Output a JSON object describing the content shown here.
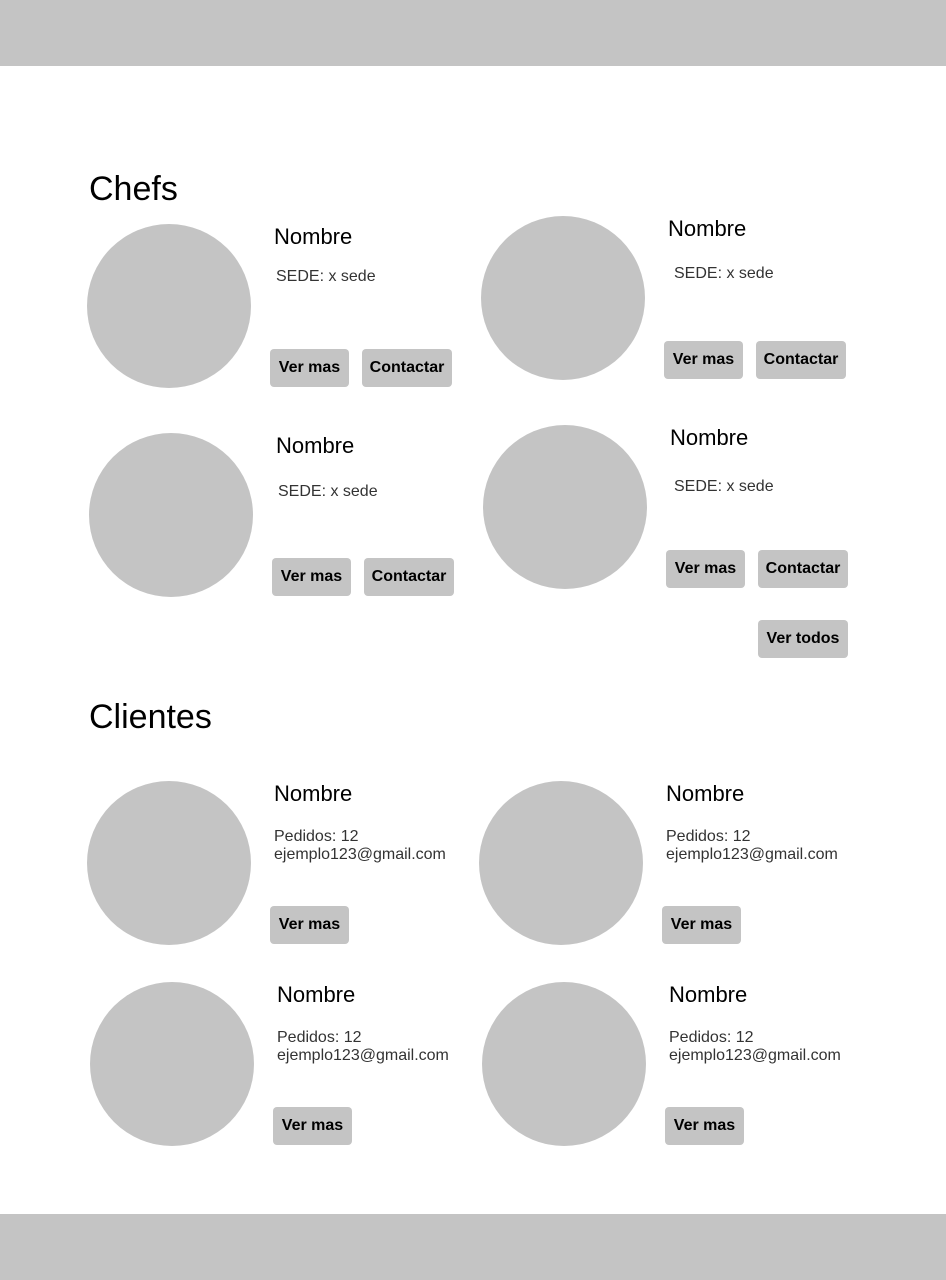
{
  "chefs": {
    "title": "Chefs",
    "view_all_label": "Ver todos",
    "items": [
      {
        "name": "Nombre",
        "sede": "SEDE: x sede",
        "more_label": "Ver mas",
        "contact_label": "Contactar"
      },
      {
        "name": "Nombre",
        "sede": "SEDE: x sede",
        "more_label": "Ver mas",
        "contact_label": "Contactar"
      },
      {
        "name": "Nombre",
        "sede": "SEDE: x sede",
        "more_label": "Ver mas",
        "contact_label": "Contactar"
      },
      {
        "name": "Nombre",
        "sede": "SEDE: x sede",
        "more_label": "Ver mas",
        "contact_label": "Contactar"
      }
    ]
  },
  "clients": {
    "title": "Clientes",
    "items": [
      {
        "name": "Nombre",
        "orders": "Pedidos: 12",
        "email": "ejemplo123@gmail.com",
        "more_label": "Ver mas"
      },
      {
        "name": "Nombre",
        "orders": "Pedidos: 12",
        "email": "ejemplo123@gmail.com",
        "more_label": "Ver mas"
      },
      {
        "name": "Nombre",
        "orders": "Pedidos: 12",
        "email": "ejemplo123@gmail.com",
        "more_label": "Ver mas"
      },
      {
        "name": "Nombre",
        "orders": "Pedidos: 12",
        "email": "ejemplo123@gmail.com",
        "more_label": "Ver mas"
      }
    ]
  }
}
